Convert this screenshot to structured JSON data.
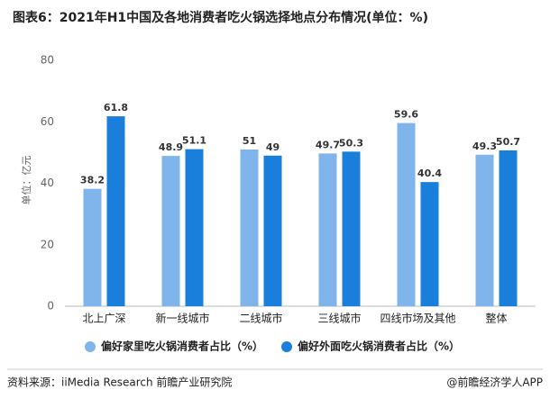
{
  "chart_data": {
    "type": "bar",
    "title": "图表6：2021年H1中国及各地消费者吃火锅选择地点分布情况(单位：%)",
    "y_label": "单位：亿元",
    "categories": [
      "北上广深",
      "新一线城市",
      "二线城市",
      "三线城市",
      "四线市场及其他",
      "整体"
    ],
    "series": [
      {
        "name": "偏好家里吃火锅消费者占比（%）",
        "color": "#7fb5ea",
        "values": [
          38.2,
          48.9,
          51,
          49.7,
          59.6,
          49.3
        ]
      },
      {
        "name": "偏好外面吃火锅消费者占比（%）",
        "color": "#1a7fdb",
        "values": [
          61.8,
          51.1,
          49,
          50.3,
          40.4,
          50.7
        ]
      }
    ],
    "ylim": [
      0,
      80
    ],
    "yticks": [
      0,
      20,
      40,
      60,
      80
    ],
    "grid": false,
    "source": "资料来源：iiMedia Research 前瞻产业研究院",
    "credit": "@前瞻经济学人APP"
  }
}
